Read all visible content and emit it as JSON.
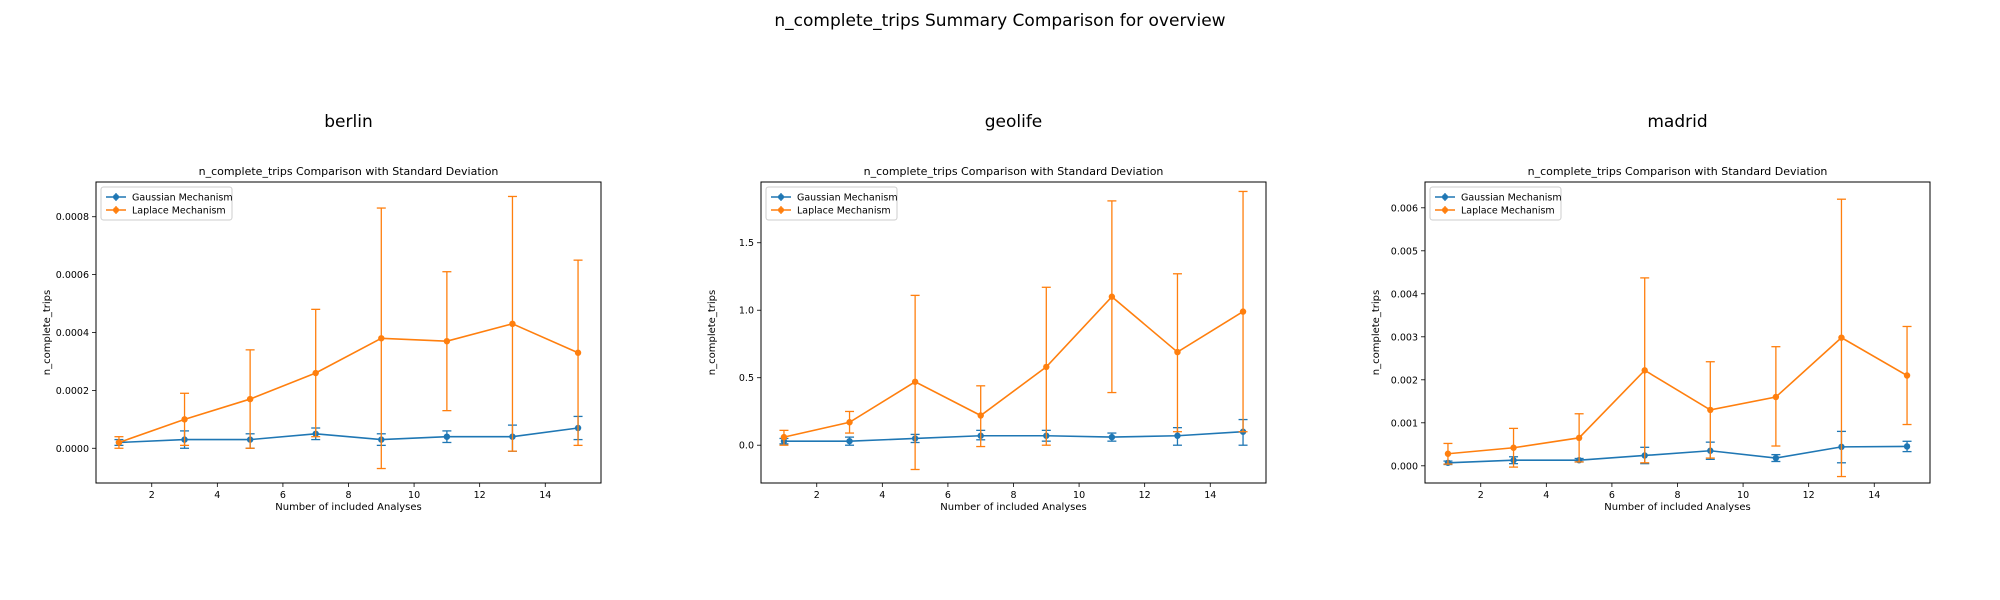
{
  "figure": {
    "suptitle": "n_complete_trips Summary Comparison for overview"
  },
  "colors": {
    "gaussian": "#1f77b4",
    "laplace": "#ff7f0e"
  },
  "chart_data": [
    {
      "type": "line",
      "panel_title": "berlin",
      "title": "n_complete_trips Comparison with Standard Deviation",
      "xlabel": "Number of included Analyses",
      "ylabel": "n_complete_trips",
      "xlim": [
        0.3,
        15.7
      ],
      "ylim": [
        -0.00012,
        0.00092
      ],
      "xticks": [
        2,
        4,
        6,
        8,
        10,
        12,
        14
      ],
      "yticks": [
        0.0,
        0.0002,
        0.0004,
        0.0006,
        0.0008
      ],
      "ytick_labels": [
        "0.0000",
        "0.0002",
        "0.0004",
        "0.0006",
        "0.0008"
      ],
      "legend": "upper-left",
      "x": [
        1,
        3,
        5,
        7,
        9,
        11,
        13,
        15
      ],
      "series": [
        {
          "name": "Gaussian Mechanism",
          "values": [
            2e-05,
            3e-05,
            3e-05,
            5e-05,
            3e-05,
            4e-05,
            4e-05,
            7e-05
          ],
          "err_low": [
            1e-05,
            0.0,
            0.0,
            3e-05,
            1e-05,
            2e-05,
            -1e-05,
            3e-05
          ],
          "err_high": [
            3e-05,
            6e-05,
            5e-05,
            7e-05,
            5e-05,
            6e-05,
            8e-05,
            0.00011
          ]
        },
        {
          "name": "Laplace Mechanism",
          "values": [
            2e-05,
            0.0001,
            0.00017,
            0.00026,
            0.00038,
            0.00037,
            0.00043,
            0.00033
          ],
          "err_low": [
            0.0,
            1e-05,
            0.0,
            4e-05,
            -7e-05,
            0.00013,
            -1e-05,
            1e-05
          ],
          "err_high": [
            4e-05,
            0.00019,
            0.00034,
            0.00048,
            0.00083,
            0.00061,
            0.00087,
            0.00065
          ]
        }
      ]
    },
    {
      "type": "line",
      "panel_title": "geolife",
      "title": "n_complete_trips Comparison with Standard Deviation",
      "xlabel": "Number of included Analyses",
      "ylabel": "n_complete_trips",
      "xlim": [
        0.3,
        15.7
      ],
      "ylim": [
        -0.28,
        1.95
      ],
      "xticks": [
        2,
        4,
        6,
        8,
        10,
        12,
        14
      ],
      "yticks": [
        0.0,
        0.5,
        1.0,
        1.5
      ],
      "ytick_labels": [
        "0.0",
        "0.5",
        "1.0",
        "1.5"
      ],
      "legend": "upper-left",
      "x": [
        1,
        3,
        5,
        7,
        9,
        11,
        13,
        15
      ],
      "series": [
        {
          "name": "Gaussian Mechanism",
          "values": [
            0.03,
            0.03,
            0.05,
            0.07,
            0.07,
            0.06,
            0.07,
            0.1
          ],
          "err_low": [
            0.01,
            0.0,
            0.02,
            0.04,
            0.03,
            0.03,
            0.0,
            0.0
          ],
          "err_high": [
            0.05,
            0.06,
            0.08,
            0.11,
            0.11,
            0.09,
            0.13,
            0.19
          ]
        },
        {
          "name": "Laplace Mechanism",
          "values": [
            0.06,
            0.17,
            0.47,
            0.22,
            0.58,
            1.1,
            0.69,
            0.99
          ],
          "err_low": [
            0.0,
            0.09,
            -0.18,
            -0.01,
            0.0,
            0.39,
            0.1,
            0.1
          ],
          "err_high": [
            0.11,
            0.25,
            1.11,
            0.44,
            1.17,
            1.81,
            1.27,
            1.88
          ]
        }
      ]
    },
    {
      "type": "line",
      "panel_title": "madrid",
      "title": "n_complete_trips Comparison with Standard Deviation",
      "xlabel": "Number of included Analyses",
      "ylabel": "n_complete_trips",
      "xlim": [
        0.3,
        15.7
      ],
      "ylim": [
        -0.0004,
        0.0066
      ],
      "xticks": [
        2,
        4,
        6,
        8,
        10,
        12,
        14
      ],
      "yticks": [
        0.0,
        0.001,
        0.002,
        0.003,
        0.004,
        0.005,
        0.006
      ],
      "ytick_labels": [
        "0.000",
        "0.001",
        "0.002",
        "0.003",
        "0.004",
        "0.005",
        "0.006"
      ],
      "legend": "upper-left",
      "x": [
        1,
        3,
        5,
        7,
        9,
        11,
        13,
        15
      ],
      "series": [
        {
          "name": "Gaussian Mechanism",
          "values": [
            7e-05,
            0.00013,
            0.00013,
            0.00024,
            0.00035,
            0.00018,
            0.00044,
            0.00045
          ],
          "err_low": [
            3e-05,
            5e-05,
            9e-05,
            5e-05,
            0.00015,
            0.0001,
            7e-05,
            0.00033
          ],
          "err_high": [
            0.00011,
            0.00021,
            0.00017,
            0.00043,
            0.00055,
            0.00026,
            0.0008,
            0.00057
          ]
        },
        {
          "name": "Laplace Mechanism",
          "values": [
            0.00028,
            0.00042,
            0.00065,
            0.00222,
            0.0013,
            0.0016,
            0.00298,
            0.0021
          ],
          "err_low": [
            4e-05,
            -3e-05,
            9e-05,
            7e-05,
            0.00018,
            0.00046,
            -0.00025,
            0.00096
          ],
          "err_high": [
            0.00052,
            0.00087,
            0.00121,
            0.00437,
            0.00242,
            0.00277,
            0.0062,
            0.00324
          ]
        }
      ]
    }
  ]
}
